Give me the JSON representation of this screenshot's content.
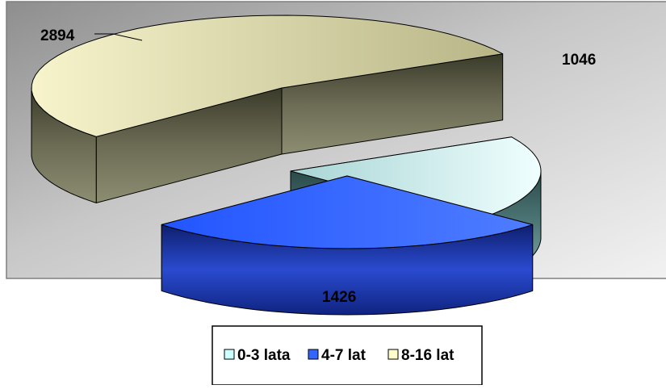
{
  "chart_data": {
    "type": "pie",
    "style": "3d-exploded",
    "categories": [
      "0-3 lata",
      "4-7 lat",
      "8-16 lat"
    ],
    "values": [
      1046,
      1426,
      2894
    ],
    "data_labels": [
      "1046",
      "1426",
      "2894"
    ],
    "colors": {
      "0-3 lata": "#ccffff",
      "4-7 lat": "#3366ff",
      "8-16 lat": "#ffffcc"
    },
    "plot_area_color": "#c0c0c0",
    "legend_position": "bottom"
  }
}
